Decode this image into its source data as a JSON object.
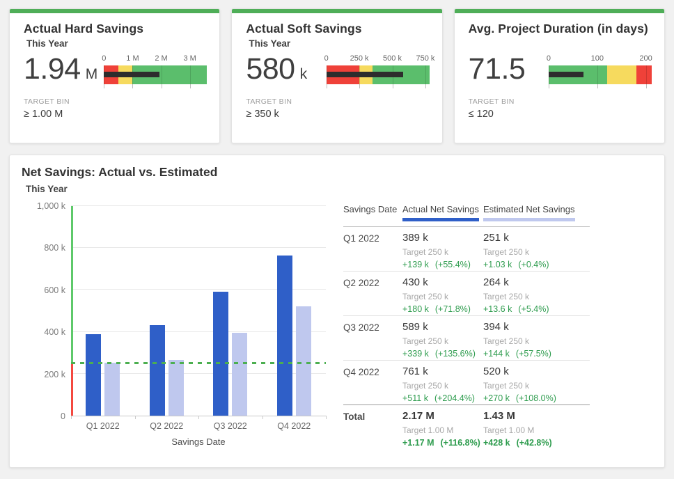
{
  "colors": {
    "accent_green": "#4fae58",
    "bullet_red": "#ef4139",
    "bullet_yellow": "#f6da5e",
    "bullet_green": "#5bbe6c",
    "measure_black": "#2d2d2d",
    "bar_actual": "#2f5fc8",
    "bar_estimated": "#bfc8ee",
    "target_line_green": "#4caf50",
    "axis_green": "#5ec96a",
    "axis_red": "#f4483f",
    "delta_green": "#2e9c4e"
  },
  "kpi_cards": [
    {
      "title": "Actual Hard Savings",
      "subtitle": "This Year",
      "value": "1.94",
      "unit": "M",
      "target_label": "TARGET BIN",
      "target_value": "≥ 1.00 M"
    },
    {
      "title": "Actual Soft Savings",
      "subtitle": "This Year",
      "value": "580",
      "unit": "k",
      "target_label": "TARGET BIN",
      "target_value": "≥ 350 k"
    },
    {
      "title": "Avg. Project Duration (in days)",
      "subtitle": "",
      "value": "71.5",
      "unit": "",
      "target_label": "TARGET BIN",
      "target_value": "≤ 120"
    }
  ],
  "main_panel": {
    "title": "Net Savings: Actual vs. Estimated",
    "subtitle": "This Year"
  },
  "chart_data": [
    {
      "type": "bullet",
      "title": "Actual Hard Savings",
      "subtitle": "This Year",
      "value": 1.94,
      "unit": "M",
      "range": [
        0,
        3.6
      ],
      "ticks": [
        {
          "label": "0",
          "value": 0
        },
        {
          "label": "1 M",
          "value": 1
        },
        {
          "label": "2 M",
          "value": 2
        },
        {
          "label": "3 M",
          "value": 3
        }
      ],
      "bands": [
        {
          "color": "red",
          "from": 0,
          "to": 0.5
        },
        {
          "color": "yellow",
          "from": 0.5,
          "to": 1
        },
        {
          "color": "green",
          "from": 1,
          "to": 3.6
        }
      ],
      "target_bin": "≥ 1.00 M"
    },
    {
      "type": "bullet",
      "title": "Actual Soft Savings",
      "subtitle": "This Year",
      "value": 580,
      "unit": "k",
      "range": [
        0,
        780
      ],
      "ticks": [
        {
          "label": "0",
          "value": 0
        },
        {
          "label": "250 k",
          "value": 250
        },
        {
          "label": "500 k",
          "value": 500
        },
        {
          "label": "750 k",
          "value": 750
        }
      ],
      "bands": [
        {
          "color": "red",
          "from": 0,
          "to": 250
        },
        {
          "color": "yellow",
          "from": 250,
          "to": 350
        },
        {
          "color": "green",
          "from": 350,
          "to": 780
        }
      ],
      "target_bin": "≥ 350 k"
    },
    {
      "type": "bullet",
      "title": "Avg. Project Duration (in days)",
      "value": 71.5,
      "unit": "days",
      "range": [
        0,
        212
      ],
      "ticks": [
        {
          "label": "0",
          "value": 0
        },
        {
          "label": "100",
          "value": 100
        },
        {
          "label": "200",
          "value": 200
        }
      ],
      "bands": [
        {
          "color": "green",
          "from": 0,
          "to": 120
        },
        {
          "color": "yellow",
          "from": 120,
          "to": 180
        },
        {
          "color": "red",
          "from": 180,
          "to": 212
        }
      ],
      "target_bin": "≤ 120"
    },
    {
      "type": "bar",
      "title": "Net Savings: Actual vs. Estimated",
      "subtitle": "This Year",
      "unit": "k",
      "categories": [
        "Q1 2022",
        "Q2 2022",
        "Q3 2022",
        "Q4 2022"
      ],
      "series": [
        {
          "name": "Actual Net Savings",
          "color": "bar_actual",
          "values": [
            389,
            430,
            589,
            761
          ]
        },
        {
          "name": "Estimated Net Savings",
          "color": "bar_estimated",
          "values": [
            251,
            264,
            394,
            520
          ]
        }
      ],
      "target": 250,
      "ylim": [
        0,
        1000
      ],
      "yticks": [
        {
          "label": "0",
          "value": 0
        },
        {
          "label": "200 k",
          "value": 200
        },
        {
          "label": "400 k",
          "value": 400
        },
        {
          "label": "600 k",
          "value": 600
        },
        {
          "label": "800 k",
          "value": 800
        },
        {
          "label": "1,000 k",
          "value": 1000
        }
      ],
      "xlabel": "Savings Date",
      "grid": true,
      "legend": "table-header"
    },
    {
      "type": "table",
      "columns": [
        "Savings Date",
        "Actual Net Savings",
        "Estimated Net Savings"
      ],
      "rows": [
        {
          "label": "Q1 2022",
          "is_total": false,
          "actual": {
            "value": "389 k",
            "target": "Target 250 k",
            "delta": "+139 k",
            "pct": "(+55.4%)"
          },
          "estimated": {
            "value": "251 k",
            "target": "Target 250 k",
            "delta": "+1.03 k",
            "pct": "(+0.4%)"
          }
        },
        {
          "label": "Q2 2022",
          "is_total": false,
          "actual": {
            "value": "430 k",
            "target": "Target 250 k",
            "delta": "+180 k",
            "pct": "(+71.8%)"
          },
          "estimated": {
            "value": "264 k",
            "target": "Target 250 k",
            "delta": "+13.6 k",
            "pct": "(+5.4%)"
          }
        },
        {
          "label": "Q3 2022",
          "is_total": false,
          "actual": {
            "value": "589 k",
            "target": "Target 250 k",
            "delta": "+339 k",
            "pct": "(+135.6%)"
          },
          "estimated": {
            "value": "394 k",
            "target": "Target 250 k",
            "delta": "+144 k",
            "pct": "(+57.5%)"
          }
        },
        {
          "label": "Q4 2022",
          "is_total": false,
          "actual": {
            "value": "761 k",
            "target": "Target 250 k",
            "delta": "+511 k",
            "pct": "(+204.4%)"
          },
          "estimated": {
            "value": "520 k",
            "target": "Target 250 k",
            "delta": "+270 k",
            "pct": "(+108.0%)"
          }
        },
        {
          "label": "Total",
          "is_total": true,
          "actual": {
            "value": "2.17 M",
            "target": "Target 1.00 M",
            "delta": "+1.17 M",
            "pct": "(+116.8%)"
          },
          "estimated": {
            "value": "1.43 M",
            "target": "Target 1.00 M",
            "delta": "+428 k",
            "pct": "(+42.8%)"
          }
        }
      ]
    }
  ]
}
